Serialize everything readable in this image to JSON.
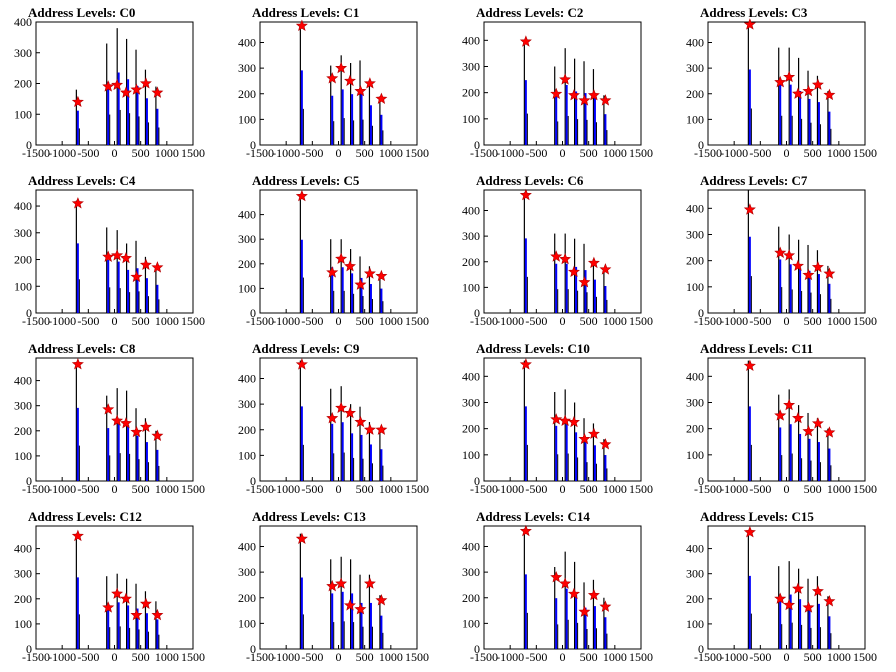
{
  "colors": {
    "histogram_black": "#000000",
    "histogram_blue": "#0000ff",
    "marker": "#ff0000",
    "background": "#ffffff"
  },
  "chart_data": [
    {
      "type": "bar",
      "title": "Address Levels: C0",
      "xlim": [
        -1500,
        1500
      ],
      "ylim": [
        0,
        400
      ],
      "xticks": [
        "-1500",
        "-1000",
        "-500",
        "0",
        "500",
        "1000",
        "1500"
      ],
      "yticks": [
        "0",
        "100",
        "200",
        "300",
        "400"
      ],
      "x": [
        -700,
        -120,
        80,
        260,
        440,
        620,
        820
      ],
      "peaks": [
        180,
        330,
        380,
        345,
        310,
        245,
        190
      ],
      "markers": [
        {
          "x": -700,
          "y": 140
        },
        {
          "x": -120,
          "y": 190
        },
        {
          "x": 50,
          "y": 195
        },
        {
          "x": 220,
          "y": 170
        },
        {
          "x": 420,
          "y": 180
        },
        {
          "x": 600,
          "y": 200
        },
        {
          "x": 820,
          "y": 170
        }
      ]
    },
    {
      "type": "bar",
      "title": "Address Levels: C1",
      "xlim": [
        -1500,
        1500
      ],
      "ylim": [
        0,
        480
      ],
      "xticks": [
        "-1500",
        "-1000",
        "-500",
        "0",
        "500",
        "1000",
        "1500"
      ],
      "yticks": [
        "0",
        "100",
        "200",
        "300",
        "400"
      ],
      "x": [
        -700,
        -120,
        80,
        260,
        440,
        620,
        820
      ],
      "peaks": [
        470,
        310,
        350,
        320,
        330,
        250,
        190
      ],
      "markers": [
        {
          "x": -700,
          "y": 465
        },
        {
          "x": -120,
          "y": 260
        },
        {
          "x": 50,
          "y": 300
        },
        {
          "x": 220,
          "y": 250
        },
        {
          "x": 420,
          "y": 210
        },
        {
          "x": 600,
          "y": 240
        },
        {
          "x": 820,
          "y": 180
        }
      ]
    },
    {
      "type": "bar",
      "title": "Address Levels: C2",
      "xlim": [
        -1500,
        1500
      ],
      "ylim": [
        0,
        470
      ],
      "xticks": [
        "-1500",
        "-1000",
        "-500",
        "0",
        "500",
        "1000",
        "1500"
      ],
      "yticks": [
        "0",
        "100",
        "200",
        "300",
        "400"
      ],
      "x": [
        -700,
        -120,
        80,
        260,
        440,
        620,
        820
      ],
      "peaks": [
        400,
        300,
        370,
        330,
        320,
        290,
        190
      ],
      "markers": [
        {
          "x": -700,
          "y": 395
        },
        {
          "x": -120,
          "y": 195
        },
        {
          "x": 50,
          "y": 250
        },
        {
          "x": 220,
          "y": 190
        },
        {
          "x": 420,
          "y": 170
        },
        {
          "x": 600,
          "y": 190
        },
        {
          "x": 820,
          "y": 170
        }
      ]
    },
    {
      "type": "bar",
      "title": "Address Levels: C3",
      "xlim": [
        -1500,
        1500
      ],
      "ylim": [
        0,
        480
      ],
      "xticks": [
        "-1500",
        "-1000",
        "-500",
        "0",
        "500",
        "1000",
        "1500"
      ],
      "yticks": [
        "0",
        "100",
        "200",
        "300",
        "400"
      ],
      "x": [
        -700,
        -120,
        80,
        260,
        440,
        620,
        820
      ],
      "peaks": [
        475,
        380,
        380,
        340,
        290,
        270,
        210
      ],
      "markers": [
        {
          "x": -700,
          "y": 470
        },
        {
          "x": -120,
          "y": 245
        },
        {
          "x": 50,
          "y": 265
        },
        {
          "x": 220,
          "y": 200
        },
        {
          "x": 420,
          "y": 210
        },
        {
          "x": 600,
          "y": 235
        },
        {
          "x": 820,
          "y": 195
        }
      ]
    },
    {
      "type": "bar",
      "title": "Address Levels: C4",
      "xlim": [
        -1500,
        1500
      ],
      "ylim": [
        0,
        460
      ],
      "xticks": [
        "-1500",
        "-1000",
        "-500",
        "0",
        "500",
        "1000",
        "1500"
      ],
      "yticks": [
        "0",
        "100",
        "200",
        "300",
        "400"
      ],
      "x": [
        -700,
        -120,
        80,
        260,
        440,
        620,
        820
      ],
      "peaks": [
        420,
        320,
        310,
        260,
        270,
        210,
        170
      ],
      "markers": [
        {
          "x": -700,
          "y": 410
        },
        {
          "x": -120,
          "y": 210
        },
        {
          "x": 50,
          "y": 215
        },
        {
          "x": 220,
          "y": 205
        },
        {
          "x": 420,
          "y": 135
        },
        {
          "x": 600,
          "y": 180
        },
        {
          "x": 820,
          "y": 170
        }
      ]
    },
    {
      "type": "bar",
      "title": "Address Levels: C5",
      "xlim": [
        -1500,
        1500
      ],
      "ylim": [
        0,
        500
      ],
      "xticks": [
        "-1500",
        "-1000",
        "-500",
        "0",
        "500",
        "1000",
        "1500"
      ],
      "yticks": [
        "0",
        "100",
        "200",
        "300",
        "400"
      ],
      "x": [
        -700,
        -120,
        80,
        260,
        440,
        620,
        820
      ],
      "peaks": [
        480,
        300,
        300,
        260,
        230,
        190,
        160
      ],
      "markers": [
        {
          "x": -700,
          "y": 475
        },
        {
          "x": -120,
          "y": 165
        },
        {
          "x": 50,
          "y": 220
        },
        {
          "x": 220,
          "y": 190
        },
        {
          "x": 420,
          "y": 115
        },
        {
          "x": 600,
          "y": 160
        },
        {
          "x": 820,
          "y": 150
        }
      ]
    },
    {
      "type": "bar",
      "title": "Address Levels: C6",
      "xlim": [
        -1500,
        1500
      ],
      "ylim": [
        0,
        480
      ],
      "xticks": [
        "-1500",
        "-1000",
        "-500",
        "0",
        "500",
        "1000",
        "1500"
      ],
      "yticks": [
        "0",
        "100",
        "200",
        "300",
        "400"
      ],
      "x": [
        -700,
        -120,
        80,
        260,
        440,
        620,
        820
      ],
      "peaks": [
        470,
        310,
        310,
        290,
        270,
        210,
        170
      ],
      "markers": [
        {
          "x": -700,
          "y": 460
        },
        {
          "x": -120,
          "y": 220
        },
        {
          "x": 50,
          "y": 210
        },
        {
          "x": 220,
          "y": 160
        },
        {
          "x": 420,
          "y": 120
        },
        {
          "x": 600,
          "y": 195
        },
        {
          "x": 820,
          "y": 170
        }
      ]
    },
    {
      "type": "bar",
      "title": "Address Levels: C7",
      "xlim": [
        -1500,
        1500
      ],
      "ylim": [
        0,
        470
      ],
      "xticks": [
        "-1500",
        "-1000",
        "-500",
        "0",
        "500",
        "1000",
        "1500"
      ],
      "yticks": [
        "0",
        "100",
        "200",
        "300",
        "400"
      ],
      "x": [
        -700,
        -120,
        80,
        260,
        440,
        620,
        820
      ],
      "peaks": [
        470,
        330,
        300,
        280,
        260,
        240,
        180
      ],
      "markers": [
        {
          "x": -700,
          "y": 395
        },
        {
          "x": -120,
          "y": 230
        },
        {
          "x": 50,
          "y": 220
        },
        {
          "x": 220,
          "y": 180
        },
        {
          "x": 420,
          "y": 145
        },
        {
          "x": 600,
          "y": 175
        },
        {
          "x": 820,
          "y": 150
        }
      ]
    },
    {
      "type": "bar",
      "title": "Address Levels: C8",
      "xlim": [
        -1500,
        1500
      ],
      "ylim": [
        0,
        490
      ],
      "xticks": [
        "-1500",
        "-1000",
        "-500",
        "0",
        "500",
        "1000",
        "1500"
      ],
      "yticks": [
        "0",
        "100",
        "200",
        "300",
        "400"
      ],
      "x": [
        -700,
        -120,
        80,
        260,
        440,
        620,
        820
      ],
      "peaks": [
        470,
        340,
        370,
        360,
        290,
        250,
        200
      ],
      "markers": [
        {
          "x": -700,
          "y": 465
        },
        {
          "x": -120,
          "y": 285
        },
        {
          "x": 50,
          "y": 240
        },
        {
          "x": 220,
          "y": 230
        },
        {
          "x": 420,
          "y": 195
        },
        {
          "x": 600,
          "y": 215
        },
        {
          "x": 820,
          "y": 180
        }
      ]
    },
    {
      "type": "bar",
      "title": "Address Levels: C9",
      "xlim": [
        -1500,
        1500
      ],
      "ylim": [
        0,
        480
      ],
      "xticks": [
        "-1500",
        "-1000",
        "-500",
        "0",
        "500",
        "1000",
        "1500"
      ],
      "yticks": [
        "0",
        "100",
        "200",
        "300",
        "400"
      ],
      "x": [
        -700,
        -120,
        80,
        260,
        440,
        620,
        820
      ],
      "peaks": [
        470,
        360,
        370,
        300,
        290,
        230,
        200
      ],
      "markers": [
        {
          "x": -700,
          "y": 455
        },
        {
          "x": -120,
          "y": 245
        },
        {
          "x": 50,
          "y": 285
        },
        {
          "x": 220,
          "y": 265
        },
        {
          "x": 420,
          "y": 230
        },
        {
          "x": 600,
          "y": 200
        },
        {
          "x": 820,
          "y": 200
        }
      ]
    },
    {
      "type": "bar",
      "title": "Address Levels: C10",
      "xlim": [
        -1500,
        1500
      ],
      "ylim": [
        0,
        470
      ],
      "xticks": [
        "-1500",
        "-1000",
        "-500",
        "0",
        "500",
        "1000",
        "1500"
      ],
      "yticks": [
        "0",
        "100",
        "200",
        "300",
        "400"
      ],
      "x": [
        -700,
        -120,
        80,
        260,
        440,
        620,
        820
      ],
      "peaks": [
        460,
        340,
        350,
        300,
        240,
        220,
        160
      ],
      "markers": [
        {
          "x": -700,
          "y": 445
        },
        {
          "x": -120,
          "y": 235
        },
        {
          "x": 50,
          "y": 230
        },
        {
          "x": 220,
          "y": 225
        },
        {
          "x": 420,
          "y": 160
        },
        {
          "x": 600,
          "y": 180
        },
        {
          "x": 820,
          "y": 140
        }
      ]
    },
    {
      "type": "bar",
      "title": "Address Levels: C11",
      "xlim": [
        -1500,
        1500
      ],
      "ylim": [
        0,
        470
      ],
      "xticks": [
        "-1500",
        "-1000",
        "-500",
        "0",
        "500",
        "1000",
        "1500"
      ],
      "yticks": [
        "0",
        "100",
        "200",
        "300",
        "400"
      ],
      "x": [
        -700,
        -120,
        80,
        260,
        440,
        620,
        820
      ],
      "peaks": [
        460,
        330,
        350,
        290,
        260,
        240,
        200
      ],
      "markers": [
        {
          "x": -700,
          "y": 440
        },
        {
          "x": -120,
          "y": 250
        },
        {
          "x": 50,
          "y": 290
        },
        {
          "x": 220,
          "y": 240
        },
        {
          "x": 420,
          "y": 190
        },
        {
          "x": 600,
          "y": 220
        },
        {
          "x": 820,
          "y": 185
        }
      ]
    },
    {
      "type": "bar",
      "title": "Address Levels: C12",
      "xlim": [
        -1500,
        1500
      ],
      "ylim": [
        0,
        490
      ],
      "xticks": [
        "-1500",
        "-1000",
        "-500",
        "0",
        "500",
        "1000",
        "1500"
      ],
      "yticks": [
        "0",
        "100",
        "200",
        "300",
        "400"
      ],
      "x": [
        -700,
        -120,
        80,
        260,
        440,
        620,
        820
      ],
      "peaks": [
        460,
        290,
        300,
        280,
        260,
        230,
        190
      ],
      "markers": [
        {
          "x": -700,
          "y": 450
        },
        {
          "x": -120,
          "y": 165
        },
        {
          "x": 50,
          "y": 220
        },
        {
          "x": 220,
          "y": 200
        },
        {
          "x": 420,
          "y": 135
        },
        {
          "x": 600,
          "y": 180
        },
        {
          "x": 820,
          "y": 135
        }
      ]
    },
    {
      "type": "bar",
      "title": "Address Levels: C13",
      "xlim": [
        -1500,
        1500
      ],
      "ylim": [
        0,
        480
      ],
      "xticks": [
        "-1500",
        "-1000",
        "-500",
        "0",
        "500",
        "1000",
        "1500"
      ],
      "yticks": [
        "0",
        "100",
        "200",
        "300",
        "400"
      ],
      "x": [
        -700,
        -120,
        80,
        260,
        440,
        620,
        820
      ],
      "peaks": [
        450,
        350,
        360,
        350,
        290,
        290,
        210
      ],
      "markers": [
        {
          "x": -700,
          "y": 430
        },
        {
          "x": -120,
          "y": 245
        },
        {
          "x": 50,
          "y": 255
        },
        {
          "x": 220,
          "y": 170
        },
        {
          "x": 420,
          "y": 155
        },
        {
          "x": 600,
          "y": 255
        },
        {
          "x": 820,
          "y": 190
        }
      ]
    },
    {
      "type": "bar",
      "title": "Address Levels: C14",
      "xlim": [
        -1500,
        1500
      ],
      "ylim": [
        0,
        480
      ],
      "xticks": [
        "-1500",
        "-1000",
        "-500",
        "0",
        "500",
        "1000",
        "1500"
      ],
      "yticks": [
        "0",
        "100",
        "200",
        "300",
        "400"
      ],
      "x": [
        -700,
        -120,
        80,
        260,
        440,
        620,
        820
      ],
      "peaks": [
        470,
        320,
        380,
        340,
        260,
        270,
        200
      ],
      "markers": [
        {
          "x": -700,
          "y": 460
        },
        {
          "x": -120,
          "y": 280
        },
        {
          "x": 50,
          "y": 255
        },
        {
          "x": 220,
          "y": 215
        },
        {
          "x": 420,
          "y": 145
        },
        {
          "x": 600,
          "y": 210
        },
        {
          "x": 820,
          "y": 165
        }
      ]
    },
    {
      "type": "bar",
      "title": "Address Levels: C15",
      "xlim": [
        -1500,
        1500
      ],
      "ylim": [
        0,
        490
      ],
      "xticks": [
        "-1500",
        "-1000",
        "-500",
        "0",
        "500",
        "1000",
        "1500"
      ],
      "yticks": [
        "0",
        "100",
        "200",
        "300",
        "400"
      ],
      "x": [
        -700,
        -120,
        80,
        260,
        440,
        620,
        820
      ],
      "peaks": [
        470,
        330,
        350,
        320,
        280,
        290,
        210
      ],
      "markers": [
        {
          "x": -700,
          "y": 465
        },
        {
          "x": -120,
          "y": 200
        },
        {
          "x": 50,
          "y": 175
        },
        {
          "x": 220,
          "y": 240
        },
        {
          "x": 420,
          "y": 165
        },
        {
          "x": 600,
          "y": 230
        },
        {
          "x": 820,
          "y": 190
        }
      ]
    }
  ]
}
